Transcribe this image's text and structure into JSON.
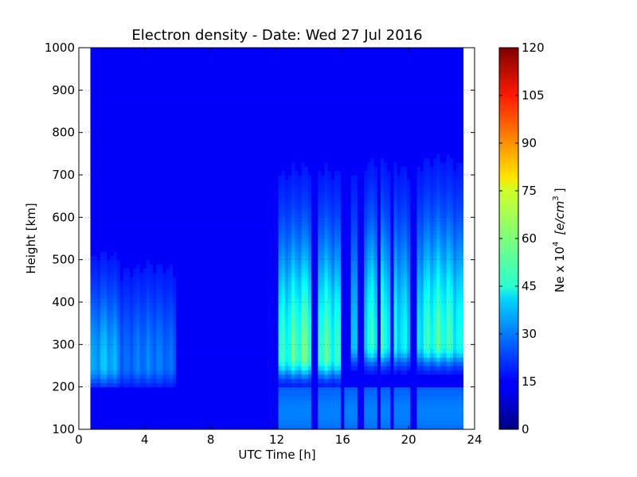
{
  "chart_data": {
    "type": "heatmap",
    "title": "Electron density - Date: Wed 27 Jul 2016",
    "xlabel": "UTC Time [h]",
    "ylabel": "Height [km]",
    "xlim": [
      0,
      24
    ],
    "ylim": [
      100,
      1000
    ],
    "x_ticks": [
      "0",
      "4",
      "8",
      "12",
      "16",
      "20",
      "24"
    ],
    "y_ticks": [
      "100",
      "200",
      "300",
      "400",
      "500",
      "600",
      "700",
      "800",
      "900",
      "1000"
    ],
    "data_x_range": [
      0.7,
      23.3
    ],
    "grid": true,
    "colorbar": {
      "label": "Ne x 10",
      "exponent": "4",
      "unit": "[e/cm",
      "unit_exponent": "3",
      "unit_close": "]",
      "range": [
        0,
        120
      ],
      "ticks": [
        "0",
        "15",
        "30",
        "45",
        "60",
        "75",
        "90",
        "105",
        "120"
      ],
      "colormap": "jet"
    },
    "features": [
      {
        "hour_start": 0.7,
        "hour_end": 2.5,
        "peak_height_km": 250,
        "peak_ne": 30
      },
      {
        "hour_start": 2.5,
        "hour_end": 6.0,
        "peak_height_km": 250,
        "peak_ne": 20
      },
      {
        "hour_start": 12.0,
        "hour_end": 16.0,
        "peak_height_km": 270,
        "peak_ne": 55
      },
      {
        "hour_start": 16.5,
        "hour_end": 20.0,
        "peak_height_km": 300,
        "peak_ne": 45
      },
      {
        "hour_start": 20.5,
        "hour_end": 23.3,
        "peak_height_km": 300,
        "peak_ne": 50
      }
    ],
    "gaps_hours": [
      14.3,
      16.0,
      17.1,
      18.2,
      19.0,
      20.3
    ]
  }
}
